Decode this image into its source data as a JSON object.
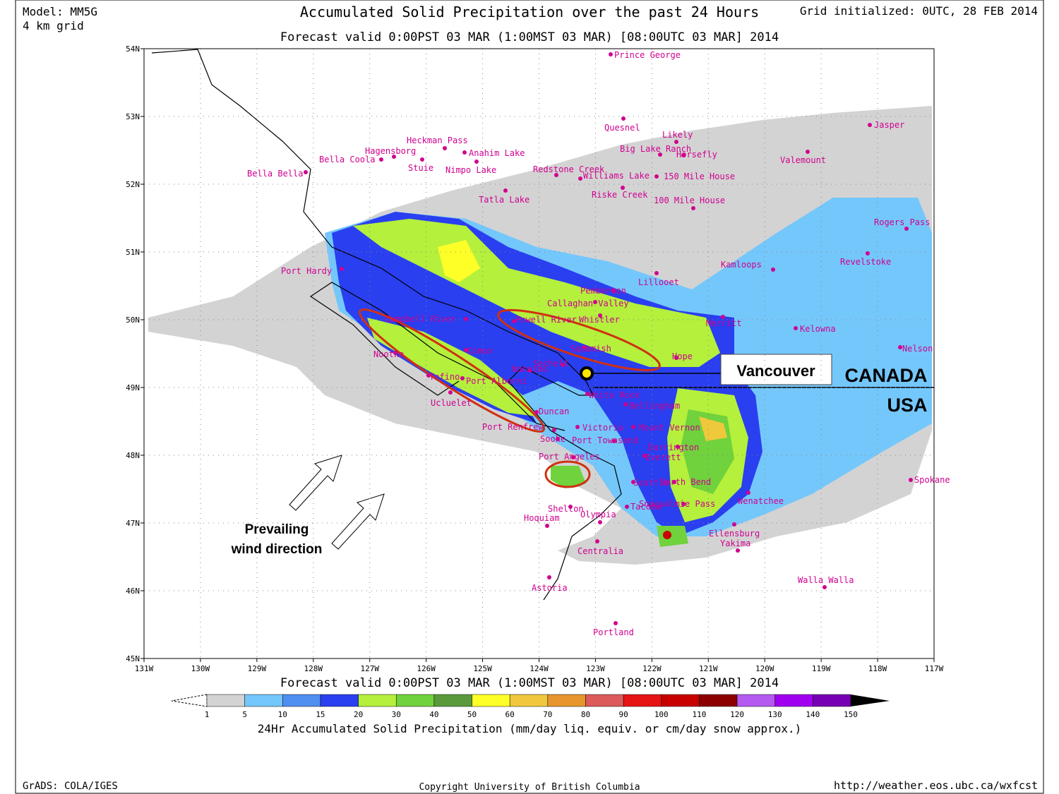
{
  "header": {
    "model": "Model: MM5G",
    "grid": "4 km grid",
    "title": "Accumulated Solid Precipitation over the past 24 Hours",
    "initialized": "Grid initialized: 0UTC, 28 FEB 2014",
    "valid": "Forecast valid 0:00PST 03 MAR (1:00MST 03 MAR) [08:00UTC 03 MAR] 2014"
  },
  "map": {
    "lat_labels": [
      "54N",
      "53N",
      "52N",
      "51N",
      "50N",
      "49N",
      "48N",
      "47N",
      "46N",
      "45N"
    ],
    "lon_labels": [
      "131W",
      "130W",
      "129W",
      "128W",
      "127W",
      "126W",
      "125W",
      "124W",
      "123W",
      "122W",
      "121W",
      "120W",
      "119W",
      "118W",
      "117W"
    ],
    "cities": [
      "Prince George",
      "Quesnel",
      "Likely",
      "Big Lake Ranch",
      "Horsefly",
      "Jasper",
      "Valemount",
      "Heckman Pass",
      "Hagensborg",
      "Bella Coola",
      "Bella Bella",
      "Anahim Lake",
      "Stuie",
      "Nimpo Lake",
      "Redstone Creek",
      "Williams Lake",
      "150 Mile House",
      "Riske Creek",
      "100 Mile House",
      "Tatla Lake",
      "Rogers Pass",
      "Revelstoke",
      "Kamloops",
      "Port Hardy",
      "Lillooet",
      "Pemberton",
      "Callaghan Valley",
      "Whistler",
      "Powell River",
      "Campbell River",
      "Squamish",
      "Merritt",
      "Kelowna",
      "Hope",
      "Nelson",
      "Comox",
      "Sechelt",
      "Nanaimo",
      "Nootka",
      "Tofino",
      "Port Alberni",
      "Ucluelet",
      "Duncan",
      "White Rock",
      "Bellingham",
      "Port Renfrew",
      "Victoria",
      "Mount Vernon",
      "Sooke",
      "Port Townsend",
      "Darrington",
      "Port Angeles",
      "Everett",
      "Seattle",
      "North Bend",
      "Snoqualmie Pass",
      "Wenatchee",
      "Spokane",
      "Shelton",
      "Olympia",
      "Tacoma",
      "Hoquiam",
      "Ellensburg",
      "Yakima",
      "Centralia",
      "Astoria",
      "Walla Walla",
      "Portland"
    ],
    "annotations": {
      "city": "Vancouver",
      "north": "CANADA",
      "south": "USA",
      "wind": [
        "Prevailing",
        "wind direction"
      ]
    }
  },
  "colorbar": {
    "valid": "Forecast valid 0:00PST 03 MAR (1:00MST 03 MAR) [08:00UTC 03 MAR] 2014",
    "labels": [
      1,
      5,
      10,
      15,
      20,
      30,
      40,
      50,
      60,
      70,
      80,
      90,
      100,
      110,
      120,
      130,
      140,
      150
    ],
    "colors": [
      "#d3d3d3",
      "#74c7fb",
      "#4f8ff0",
      "#2a3ff0",
      "#b4f03c",
      "#70d23c",
      "#5a9a3c",
      "#ffff28",
      "#f0c83c",
      "#e6962d",
      "#dc5a5a",
      "#e61414",
      "#c80000",
      "#8c0000",
      "#b45af0",
      "#a000f0",
      "#7800b4"
    ],
    "title": "24Hr Accumulated Solid Precipitation (mm/day liq. equiv. or cm/day snow approx.)"
  },
  "footer": {
    "left": "GrADS: COLA/IGES",
    "center": "Copyright University of British Columbia",
    "right": "http://weather.eos.ubc.ca/wxfcst"
  }
}
